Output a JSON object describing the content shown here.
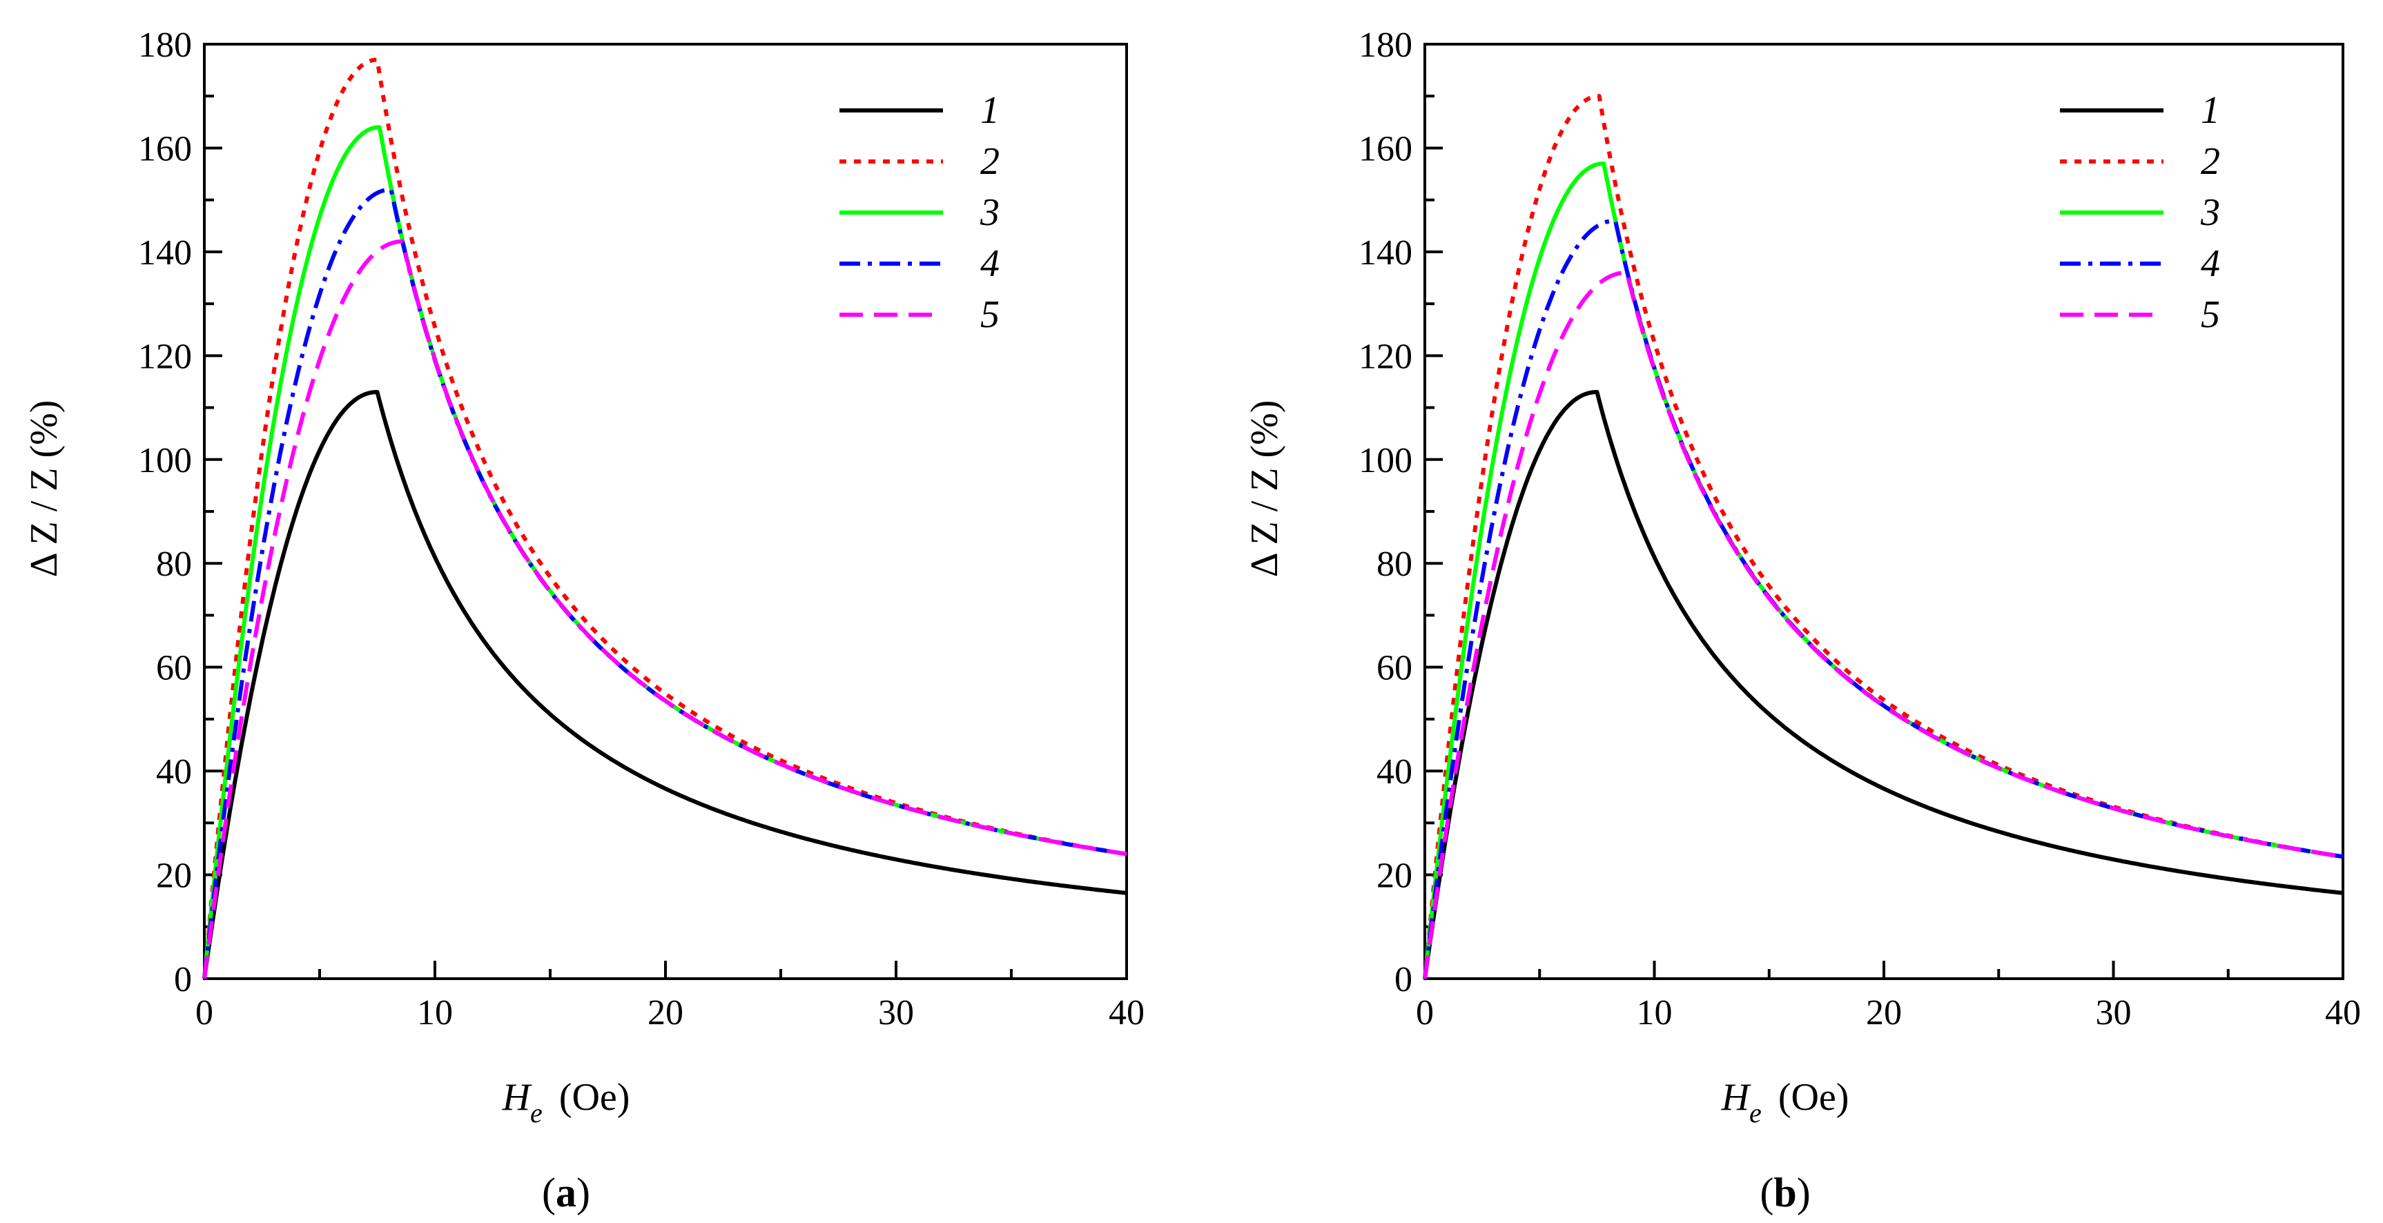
{
  "figure": {
    "panels": [
      "a",
      "b"
    ]
  },
  "chart_data": [
    {
      "type": "line",
      "panel": "a",
      "panel_label_open": "(",
      "panel_label_letter": "a",
      "panel_label_close": ")",
      "xlabel_symbol": "H",
      "xlabel_subscript": "e",
      "xlabel_units": "(Oe)",
      "ylabel": "Δ Z / Z  (%)",
      "xlim": [
        0,
        40
      ],
      "ylim": [
        0,
        180
      ],
      "xticks": [
        0,
        10,
        20,
        30,
        40
      ],
      "yticks": [
        0,
        20,
        40,
        60,
        80,
        100,
        120,
        140,
        160,
        180
      ],
      "legend_position": "top-right",
      "series": [
        {
          "name": "1",
          "color": "#000000",
          "dash": "solid",
          "peak": 113,
          "peak_x": 7.5,
          "tail_40": 16.5
        },
        {
          "name": "2",
          "color": "#ff0000",
          "dash": "dot",
          "peak": 177,
          "peak_x": 7.5,
          "tail_40": 24
        },
        {
          "name": "3",
          "color": "#00ff00",
          "dash": "solid",
          "peak": 164,
          "peak_x": 7.6,
          "tail_40": 24
        },
        {
          "name": "4",
          "color": "#0000ff",
          "dash": "dashdot",
          "peak": 152,
          "peak_x": 8.1,
          "tail_40": 24
        },
        {
          "name": "5",
          "color": "#ff00ff",
          "dash": "dash",
          "peak": 142,
          "peak_x": 8.6,
          "tail_40": 24
        }
      ]
    },
    {
      "type": "line",
      "panel": "b",
      "panel_label_open": "(",
      "panel_label_letter": "b",
      "panel_label_close": ")",
      "xlabel_symbol": "H",
      "xlabel_subscript": "e",
      "xlabel_units": "(Oe)",
      "ylabel": "Δ Z / Z  (%)",
      "xlim": [
        0,
        40
      ],
      "ylim": [
        0,
        180
      ],
      "xticks": [
        0,
        10,
        20,
        30,
        40
      ],
      "yticks": [
        0,
        20,
        40,
        60,
        80,
        100,
        120,
        140,
        160,
        180
      ],
      "legend_position": "top-right",
      "series": [
        {
          "name": "1",
          "color": "#000000",
          "dash": "solid",
          "peak": 113,
          "peak_x": 7.5,
          "tail_40": 16.5
        },
        {
          "name": "2",
          "color": "#ff0000",
          "dash": "dot",
          "peak": 170,
          "peak_x": 7.6,
          "tail_40": 23.5
        },
        {
          "name": "3",
          "color": "#00ff00",
          "dash": "solid",
          "peak": 157,
          "peak_x": 7.8,
          "tail_40": 23.5
        },
        {
          "name": "4",
          "color": "#0000ff",
          "dash": "dashdot",
          "peak": 146,
          "peak_x": 8.3,
          "tail_40": 23.5
        },
        {
          "name": "5",
          "color": "#ff00ff",
          "dash": "dash",
          "peak": 136,
          "peak_x": 8.8,
          "tail_40": 23.5
        }
      ]
    }
  ]
}
